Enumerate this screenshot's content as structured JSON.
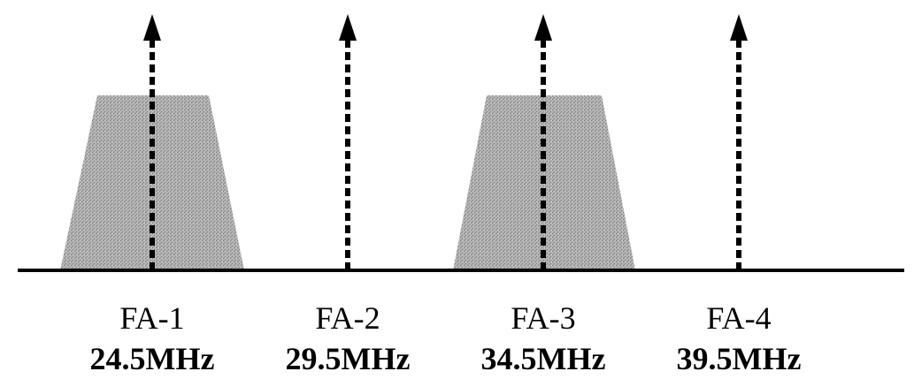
{
  "channels": [
    {
      "name": "FA-1",
      "frequency": "24.5MHz",
      "occupied": true
    },
    {
      "name": "FA-2",
      "frequency": "29.5MHz",
      "occupied": false
    },
    {
      "name": "FA-3",
      "frequency": "34.5MHz",
      "occupied": true
    },
    {
      "name": "FA-4",
      "frequency": "39.5MHz",
      "occupied": false
    }
  ],
  "colors": {
    "line": "#000000",
    "fill": "#a9a9a9",
    "background": "#ffffff"
  }
}
